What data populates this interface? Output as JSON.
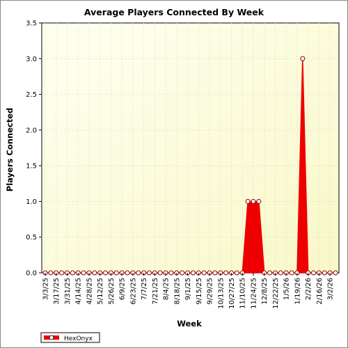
{
  "colors": {
    "background": "#ffffff",
    "plot_gradient_start": "#fffff2",
    "plot_gradient_end": "#f8f8c8",
    "series": "#ee0000",
    "marker_fill": "#ffffff",
    "grid": "#d8d8b0"
  },
  "chart_data": {
    "type": "area",
    "title": "Average Players Connected By Week",
    "xlabel": "Week",
    "ylabel": "Players Connected",
    "ylim": [
      0,
      3.5
    ],
    "y_ticks": [
      "0.0",
      "0.5",
      "1.0",
      "1.5",
      "2.0",
      "2.5",
      "3.0",
      "3.5"
    ],
    "grid": true,
    "legend_position": "bottom-left",
    "x_tick_labels": [
      "3/3/25",
      "3/17/25",
      "3/31/25",
      "4/14/25",
      "4/28/25",
      "5/12/25",
      "5/26/25",
      "6/9/25",
      "6/23/25",
      "7/7/25",
      "7/21/25",
      "8/4/25",
      "8/18/25",
      "9/1/25",
      "9/15/25",
      "9/29/25",
      "10/13/25",
      "10/27/25",
      "11/10/25",
      "11/24/25",
      "12/8/25",
      "12/22/25",
      "1/5/26",
      "1/19/26",
      "2/2/26",
      "2/16/26",
      "3/2/26"
    ],
    "x": [
      "3/3/25",
      "3/10/25",
      "3/17/25",
      "3/24/25",
      "3/31/25",
      "4/7/25",
      "4/14/25",
      "4/21/25",
      "4/28/25",
      "5/5/25",
      "5/12/25",
      "5/19/25",
      "5/26/25",
      "6/2/25",
      "6/9/25",
      "6/16/25",
      "6/23/25",
      "6/30/25",
      "7/7/25",
      "7/14/25",
      "7/21/25",
      "7/28/25",
      "8/4/25",
      "8/11/25",
      "8/18/25",
      "8/25/25",
      "9/1/25",
      "9/8/25",
      "9/15/25",
      "9/22/25",
      "9/29/25",
      "10/6/25",
      "10/13/25",
      "10/20/25",
      "10/27/25",
      "11/3/25",
      "11/10/25",
      "11/17/25",
      "11/24/25",
      "12/1/25",
      "12/8/25",
      "12/15/25",
      "12/22/25",
      "12/29/25",
      "1/5/26",
      "1/12/26",
      "1/19/26",
      "1/26/26",
      "2/2/26",
      "2/9/26",
      "2/16/26",
      "2/23/26",
      "3/2/26",
      "3/9/26"
    ],
    "series": [
      {
        "name": "HexOnyx",
        "values": [
          0,
          0,
          0,
          0,
          0,
          0,
          0,
          0,
          0,
          0,
          0,
          0,
          0,
          0,
          0,
          0,
          0,
          0,
          0,
          0,
          0,
          0,
          0,
          0,
          0,
          0,
          0,
          0,
          0,
          0,
          0,
          0,
          0,
          0,
          0,
          0,
          0,
          1,
          1,
          1,
          0,
          0,
          0,
          0,
          0,
          0,
          0,
          3,
          0,
          0,
          0,
          0,
          0,
          0
        ]
      }
    ]
  }
}
